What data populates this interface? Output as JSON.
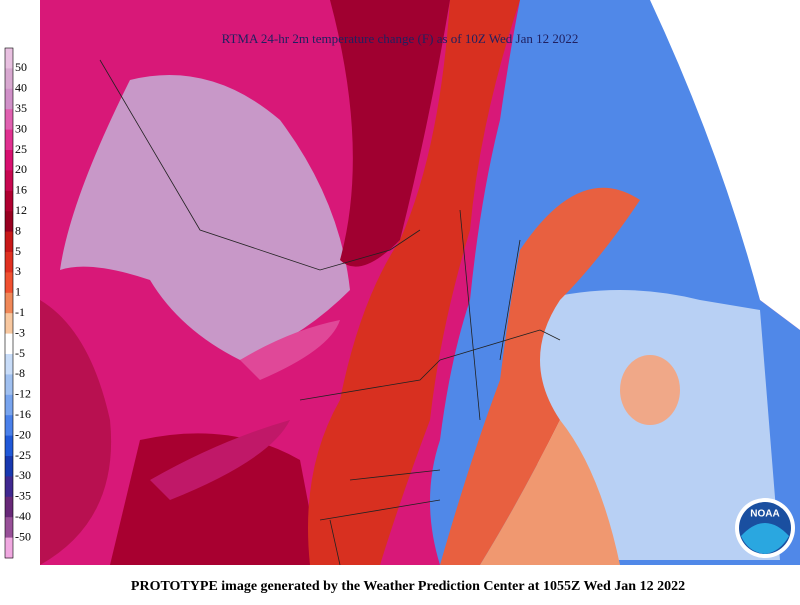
{
  "title": "RTMA 24-hr 2m temperature change (F) as of 10Z Wed Jan 12 2022",
  "footer": "PROTOTYPE image generated by the Weather Prediction Center at 1055Z Wed Jan 12 2022",
  "legend": {
    "labels": [
      50,
      40,
      35,
      30,
      25,
      20,
      16,
      12,
      8,
      5,
      3,
      1,
      -1,
      -3,
      -5,
      -8,
      -12,
      -16,
      -20,
      -25,
      -30,
      -35,
      -40,
      -50
    ],
    "colors": [
      "#e8c0e0",
      "#d8a8d0",
      "#d090c8",
      "#e060b0",
      "#e03090",
      "#d81070",
      "#c80850",
      "#b00030",
      "#980020",
      "#c81818",
      "#e03020",
      "#f05030",
      "#f08858",
      "#f8c8a0",
      "#ffffff",
      "#c8dcf8",
      "#a0c0f0",
      "#78a4ee",
      "#4a80ea",
      "#2058d8",
      "#1838b0",
      "#402890",
      "#682878",
      "#985098",
      "#f0a8e0"
    ]
  },
  "logo": "NOAA"
}
